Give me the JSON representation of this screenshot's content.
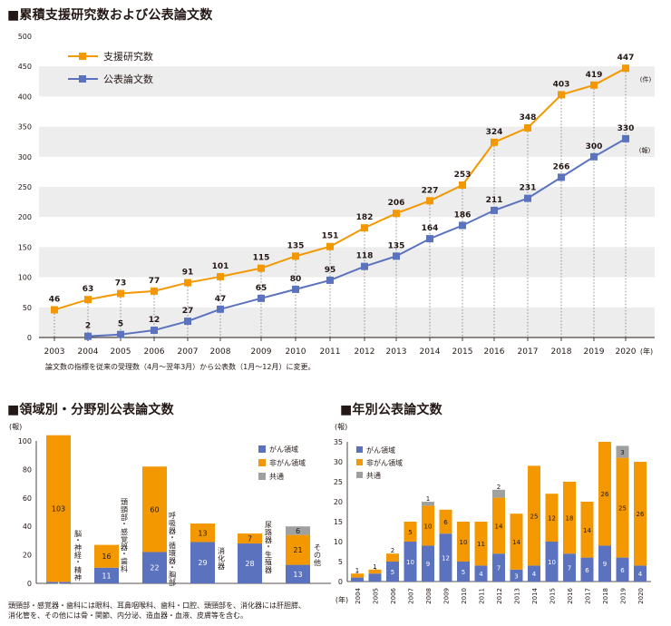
{
  "colors": {
    "orange": "#F39800",
    "blue": "#5B72BF",
    "gray": "#9FA0A0",
    "band": "#EDEDED",
    "text": "#231815"
  },
  "chart1": {
    "title": "■累積支援研究数および公表論文数",
    "note": "論文数の指標を従来の受理数（4月〜翌年3月）から公表数（1月〜12月）に変更。",
    "x_unit": "(年)",
    "unit_studies": "(件)",
    "unit_papers": "(報)"
  },
  "chart2": {
    "title": "■領域別・分野別公表論文数",
    "y_unit": "(報)",
    "note_lines": [
      "頭頸部・感覚器・歯科には眼科、耳鼻咽喉科、歯科・口腔、頭頸部を、消化器には肝胆膵、",
      "消化管を、その他には骨・関節、内分泌、造血器・血液、皮膚等を含む。"
    ]
  },
  "chart3": {
    "title": "■年別公表論文数",
    "y_unit": "(報)",
    "x_unit": "(年)"
  },
  "chart_data": [
    {
      "type": "line",
      "title": "累積支援研究数および公表論文数",
      "x": [
        "2003",
        "2004",
        "2005",
        "2006",
        "2007",
        "2008",
        "2009",
        "2010",
        "2011",
        "2012",
        "2013",
        "2014",
        "2015",
        "2016",
        "2017",
        "2018",
        "2019",
        "2020"
      ],
      "series": [
        {
          "name": "支援研究数",
          "color": "#F39800",
          "values": [
            46,
            63,
            73,
            77,
            91,
            101,
            115,
            135,
            151,
            182,
            206,
            227,
            253,
            324,
            348,
            403,
            419,
            447
          ]
        },
        {
          "name": "公表論文数",
          "color": "#5B72BF",
          "values": [
            null,
            2,
            5,
            12,
            27,
            47,
            65,
            80,
            95,
            118,
            135,
            164,
            186,
            211,
            231,
            266,
            300,
            330
          ]
        }
      ],
      "ylim": [
        0,
        500
      ],
      "yticks": [
        0,
        50,
        100,
        150,
        200,
        250,
        300,
        350,
        400,
        450,
        500
      ],
      "legend": "top-left",
      "grid": "alternating-bands"
    },
    {
      "type": "bar",
      "stacked": true,
      "title": "領域別・分野別公表論文数",
      "categories": [
        "脳・神経・精神",
        "頭頸部・感覚器・歯科",
        "呼吸器・循環器・胸部",
        "消化器",
        "尿路器・生殖器",
        "その他"
      ],
      "series": [
        {
          "name": "がん領域",
          "color": "#5B72BF",
          "values": [
            1,
            11,
            22,
            29,
            28,
            13
          ]
        },
        {
          "name": "非がん領域",
          "color": "#F39800",
          "values": [
            103,
            16,
            60,
            13,
            7,
            21
          ]
        },
        {
          "name": "共通",
          "color": "#9FA0A0",
          "values": [
            0,
            0,
            0,
            0,
            0,
            6
          ]
        }
      ],
      "ylim": [
        0,
        100
      ],
      "yticks": [
        0,
        20,
        40,
        60,
        80,
        100
      ],
      "ylabel": "(報)",
      "legend": "top-right"
    },
    {
      "type": "bar",
      "stacked": true,
      "title": "年別公表論文数",
      "categories": [
        "2004",
        "2005",
        "2006",
        "2007",
        "2008",
        "2009",
        "2010",
        "2011",
        "2012",
        "2013",
        "2014",
        "2015",
        "2016",
        "2017",
        "2018",
        "2019",
        "2020"
      ],
      "series": [
        {
          "name": "がん領域",
          "color": "#5B72BF",
          "values": [
            1,
            2,
            5,
            10,
            9,
            12,
            5,
            4,
            7,
            3,
            4,
            10,
            7,
            6,
            9,
            6,
            4
          ]
        },
        {
          "name": "非がん領域",
          "color": "#F39800",
          "values": [
            1,
            1,
            2,
            5,
            10,
            6,
            10,
            11,
            14,
            14,
            25,
            12,
            18,
            14,
            26,
            25,
            26
          ]
        },
        {
          "name": "共通",
          "color": "#9FA0A0",
          "values": [
            0,
            0,
            0,
            0,
            1,
            0,
            0,
            0,
            2,
            0,
            0,
            0,
            0,
            0,
            0,
            3,
            0
          ]
        }
      ],
      "ylim": [
        0,
        35
      ],
      "yticks": [
        0,
        5,
        10,
        15,
        20,
        25,
        30,
        35
      ],
      "ylabel": "(報)",
      "xlabel": "(年)",
      "legend": "top-left"
    }
  ]
}
